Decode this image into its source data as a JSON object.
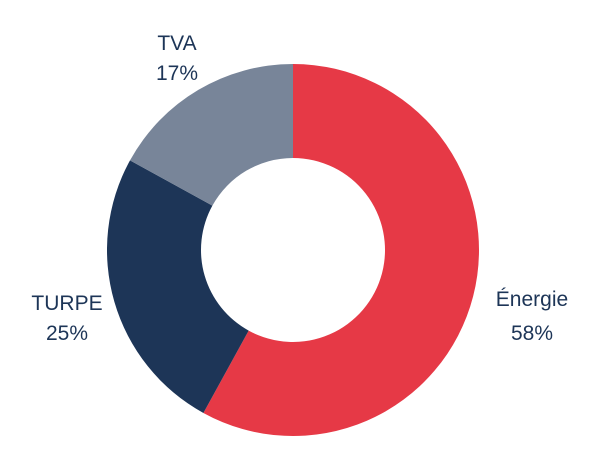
{
  "chart_data": {
    "type": "pie",
    "variant": "donut",
    "title": "",
    "labels": [
      "Énergie",
      "TURPE",
      "TVA"
    ],
    "values": [
      58,
      25,
      17
    ],
    "value_labels": [
      "58%",
      "25%",
      "17%"
    ],
    "colors": [
      "#e63946",
      "#1d3557",
      "#788599"
    ],
    "legend": "none",
    "label_color": "#1d3557"
  }
}
